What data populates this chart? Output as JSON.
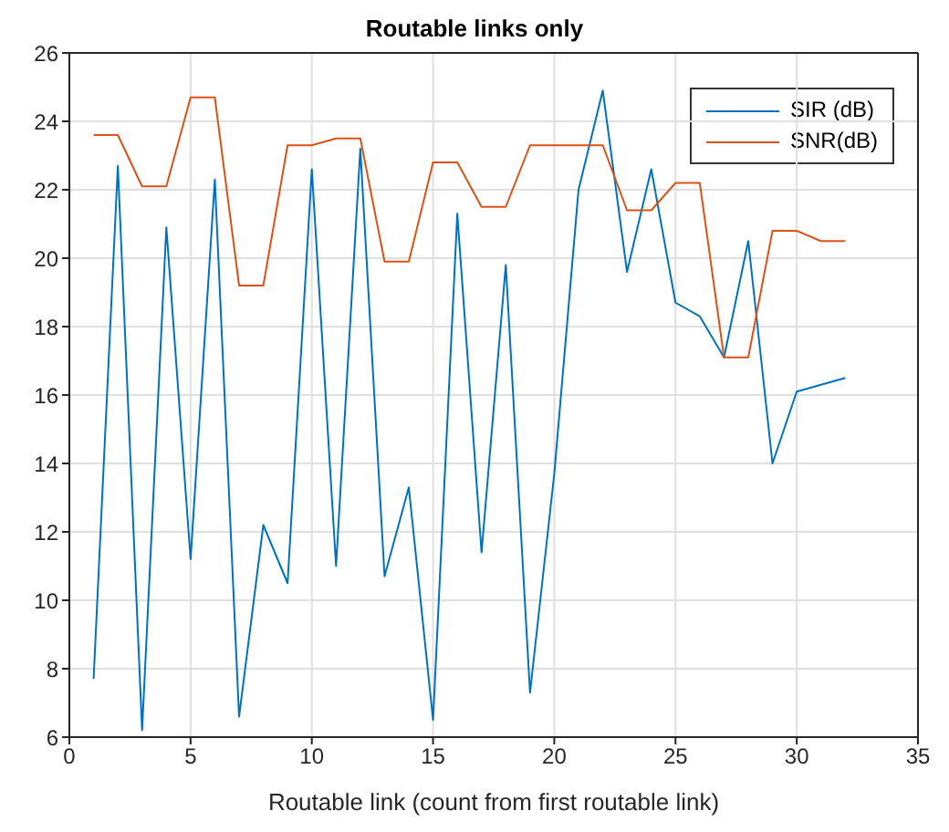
{
  "chart_data": {
    "type": "line",
    "title": "Routable links only",
    "xlabel": "Routable link (count from first routable link)",
    "x": [
      1,
      2,
      3,
      4,
      5,
      6,
      7,
      8,
      9,
      10,
      11,
      12,
      13,
      14,
      15,
      16,
      17,
      18,
      19,
      20,
      21,
      22,
      23,
      24,
      25,
      26,
      27,
      28,
      29,
      30,
      31,
      32
    ],
    "series": [
      {
        "name": "SIR (dB)",
        "color": "#0072bd",
        "values": [
          7.7,
          22.7,
          6.2,
          20.9,
          11.2,
          22.3,
          6.6,
          12.2,
          10.5,
          22.6,
          11.0,
          23.2,
          10.7,
          13.3,
          6.5,
          21.3,
          11.4,
          19.8,
          7.3,
          13.7,
          22.0,
          24.9,
          19.6,
          22.6,
          18.7,
          18.3,
          17.1,
          20.5,
          14.0,
          16.1,
          16.3,
          16.5
        ]
      },
      {
        "name": "SNR(dB)",
        "color": "#d95319",
        "values": [
          23.6,
          23.6,
          22.1,
          22.1,
          24.7,
          24.7,
          19.2,
          19.2,
          23.3,
          23.3,
          23.5,
          23.5,
          19.9,
          19.9,
          22.8,
          22.8,
          21.5,
          21.5,
          23.3,
          23.3,
          23.3,
          23.3,
          21.4,
          21.4,
          22.2,
          22.2,
          17.1,
          17.1,
          20.8,
          20.8,
          20.5,
          20.5
        ]
      }
    ],
    "xlim": [
      0,
      35
    ],
    "xticks": [
      0,
      5,
      10,
      15,
      20,
      25,
      30,
      35
    ],
    "ylim": [
      6,
      26
    ],
    "yticks": [
      6,
      8,
      10,
      12,
      14,
      16,
      18,
      20,
      22,
      24,
      26
    ],
    "grid": true,
    "legend": "top right",
    "marker": "none",
    "line_style": "solid"
  }
}
